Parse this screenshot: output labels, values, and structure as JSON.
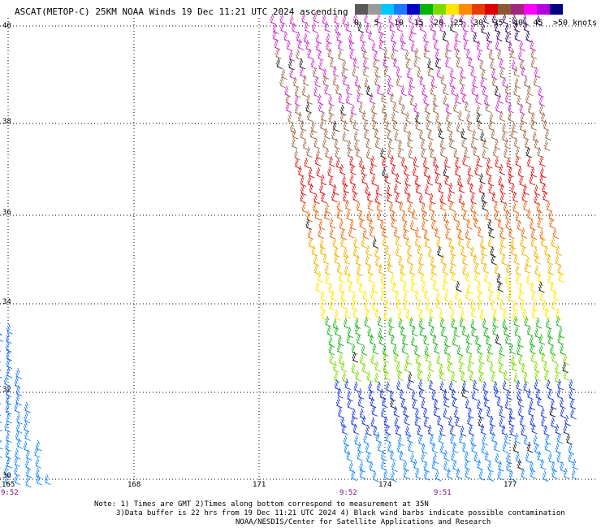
{
  "header": {
    "title": "ASCAT(METOP-C) 25KM NOAA Winds 19 Dec 11:21 UTC 2024 ascending"
  },
  "speed_scale": {
    "labels": [
      "0",
      "5",
      "10",
      "15",
      "20",
      "25",
      "30",
      "35",
      "40",
      "45",
      ">50 knots"
    ],
    "colors": [
      "#5a5a5a",
      "#9a9a9a",
      "#00c8ff",
      "#1e78ff",
      "#0000c8",
      "#00b400",
      "#7cdc00",
      "#ffe600",
      "#ff8c00",
      "#e63c00",
      "#dc0000",
      "#8c5a32",
      "#a0287a",
      "#ff00ff",
      "#b400dc",
      "#000080"
    ]
  },
  "map": {
    "lat_labels": [
      "40",
      "38",
      "36",
      "34",
      "32",
      "30"
    ],
    "lon_labels": [
      "165",
      "168",
      "171",
      "174",
      "177"
    ],
    "time_labels": [
      "9:52",
      "9:52",
      "9:51"
    ]
  },
  "footer": {
    "line1": "Note: 1) Times are GMT 2)Times along bottom correspond to measurement at 35N",
    "line2": "3)Data buffer is 22 hrs from 19 Dec 11:21 UTC 2024 4) Black wind barbs indicate possible contamination",
    "line3": "NOAA/NESDIS/Center for Satellite Applications and Research"
  }
}
